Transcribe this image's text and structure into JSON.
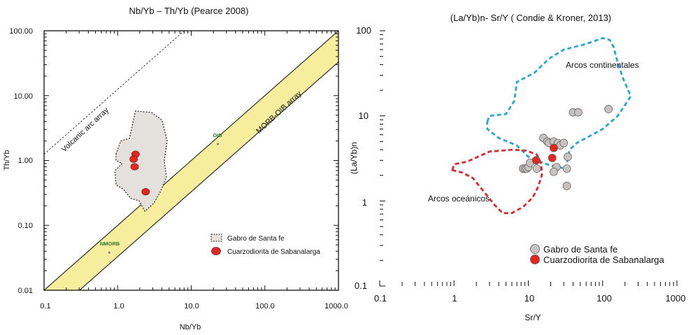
{
  "chart_data": [
    {
      "type": "scatter",
      "title": "Nb/Yb – Th/Yb (Pearce 2008)",
      "xlabel": "Nb/Yb",
      "ylabel": "Th/Yb",
      "xscale": "log",
      "yscale": "log",
      "xlim": [
        0.1,
        1000
      ],
      "ylim": [
        0.01,
        100
      ],
      "xticks": [
        "0.1",
        "1.0",
        "10.0",
        "100.0",
        "1000.0"
      ],
      "yticks": [
        "0.01",
        "0.10",
        "1.00",
        "10.00",
        "100.00"
      ],
      "annotations": {
        "volcanic_arc": "Volcanic arc array",
        "morb_oib": "MORB-OIB array",
        "oib": "OIB",
        "nmorb": "NMORB"
      },
      "reference_points": [
        {
          "label": "OIB",
          "x": 23,
          "y": 1.8
        },
        {
          "label": "NMORB",
          "x": 0.77,
          "y": 0.038
        }
      ],
      "series": [
        {
          "name": "Cuarzodiorita de Sabanalarga",
          "color": "#e8251f",
          "points": [
            [
              1.75,
              1.25
            ],
            [
              1.65,
              1.05
            ],
            [
              1.7,
              0.8
            ],
            [
              2.4,
              0.33
            ]
          ]
        }
      ],
      "fields": [
        {
          "name": "Gabro de Santa fe",
          "polygon": [
            [
              0.95,
              1.25
            ],
            [
              1.1,
              2.0
            ],
            [
              1.45,
              2.2
            ],
            [
              1.75,
              5.8
            ],
            [
              2.9,
              5.5
            ],
            [
              4.0,
              4.2
            ],
            [
              4.7,
              2.0
            ],
            [
              4.3,
              1.0
            ],
            [
              4.6,
              0.55
            ],
            [
              3.8,
              0.33
            ],
            [
              3.1,
              0.22
            ],
            [
              2.35,
              0.165
            ],
            [
              1.95,
              0.24
            ],
            [
              1.5,
              0.26
            ],
            [
              1.2,
              0.36
            ],
            [
              0.95,
              0.42
            ],
            [
              0.92,
              0.7
            ],
            [
              1.15,
              0.9
            ],
            [
              0.95,
              1.0
            ]
          ]
        }
      ],
      "legend": [
        {
          "label": "Gabro de Santa fe",
          "symbol": "field"
        },
        {
          "label": "Cuarzodiorita de Sabanalarga",
          "symbol": "red-circle"
        }
      ],
      "legend_position": "bottom-right"
    },
    {
      "type": "scatter",
      "title": "(La/Yb)n- Sr/Y ( Condie & Kroner, 2013)",
      "xlabel": "Sr/Y",
      "ylabel": "(La/Yb)n",
      "xscale": "log",
      "yscale": "log",
      "xlim": [
        0.1,
        1000
      ],
      "ylim": [
        0.1,
        100
      ],
      "xticks": [
        "0.1",
        "1",
        "10",
        "100",
        "1000"
      ],
      "yticks": [
        "0.1",
        "1",
        "10",
        "100"
      ],
      "annotations": {
        "continental": "Arcos continentales",
        "oceanic": "Arcos oceánicos"
      },
      "series": [
        {
          "name": "Gabro de Santa fe",
          "color": "#c8c3c0",
          "points": [
            [
              8.5,
              2.4
            ],
            [
              9.0,
              2.4
            ],
            [
              9.5,
              2.4
            ],
            [
              10.0,
              2.5
            ],
            [
              10.5,
              2.8
            ],
            [
              13.0,
              2.4
            ],
            [
              16.0,
              5.5
            ],
            [
              18.0,
              5.0
            ],
            [
              19.0,
              4.8
            ],
            [
              22.0,
              5.0
            ],
            [
              25.0,
              4.8
            ],
            [
              27.0,
              4.5
            ],
            [
              30.0,
              4.8
            ],
            [
              24.0,
              2.5
            ],
            [
              22.0,
              2.2
            ],
            [
              33.0,
              2.4
            ],
            [
              34.0,
              3.3
            ],
            [
              33.0,
              1.5
            ],
            [
              40.0,
              11.0
            ],
            [
              47.0,
              11.0
            ],
            [
              120.0,
              12.0
            ]
          ]
        },
        {
          "name": "Cuarzodiorita de Sabanalarga",
          "color": "#e8251f",
          "points": [
            [
              12.8,
              3.0
            ],
            [
              22.0,
              4.2
            ],
            [
              21.0,
              3.2
            ]
          ]
        }
      ],
      "fields": [
        {
          "name": "Arcos continentales",
          "color": "#2aa3d6",
          "polygon": [
            [
              2.8,
              8.5
            ],
            [
              3.0,
              10.0
            ],
            [
              5.0,
              10.5
            ],
            [
              6.5,
              15.0
            ],
            [
              7.0,
              25.0
            ],
            [
              12.0,
              32.0
            ],
            [
              19.0,
              47.0
            ],
            [
              30.0,
              60.0
            ],
            [
              60.0,
              70.0
            ],
            [
              100.0,
              82.0
            ],
            [
              125.0,
              78.0
            ],
            [
              140.0,
              65.0
            ],
            [
              160.0,
              42.0
            ],
            [
              190.0,
              27.0
            ],
            [
              240.0,
              17.0
            ],
            [
              160.0,
              10.0
            ],
            [
              100.0,
              7.0
            ],
            [
              60.0,
              5.5
            ],
            [
              45.0,
              4.8
            ],
            [
              36.0,
              4.0
            ],
            [
              32.0,
              2.4
            ],
            [
              20.0,
              2.6
            ],
            [
              13.0,
              3.0
            ],
            [
              10.0,
              3.3
            ],
            [
              7.0,
              4.5
            ],
            [
              4.0,
              5.5
            ],
            [
              2.8,
              7.0
            ]
          ]
        },
        {
          "name": "Arcos oceánicos",
          "color": "#e0262a",
          "polygon": [
            [
              0.95,
              2.3
            ],
            [
              1.0,
              2.7
            ],
            [
              1.5,
              2.9
            ],
            [
              3.0,
              3.8
            ],
            [
              6.0,
              4.0
            ],
            [
              9.5,
              3.9
            ],
            [
              13.0,
              3.5
            ],
            [
              15.0,
              2.7
            ],
            [
              15.2,
              2.0
            ],
            [
              13.5,
              1.45
            ],
            [
              11.5,
              1.1
            ],
            [
              8.5,
              0.85
            ],
            [
              6.0,
              0.72
            ],
            [
              4.5,
              0.72
            ],
            [
              3.5,
              0.9
            ],
            [
              2.5,
              1.3
            ],
            [
              1.8,
              1.85
            ],
            [
              1.3,
              2.15
            ],
            [
              0.95,
              2.3
            ]
          ]
        }
      ],
      "legend": [
        {
          "label": "Gabro de Santa fe",
          "symbol": "gray-circle"
        },
        {
          "label": "Cuarzodiorita de Sabanalarga",
          "symbol": "red-circle"
        }
      ],
      "legend_position": "bottom-right"
    }
  ]
}
